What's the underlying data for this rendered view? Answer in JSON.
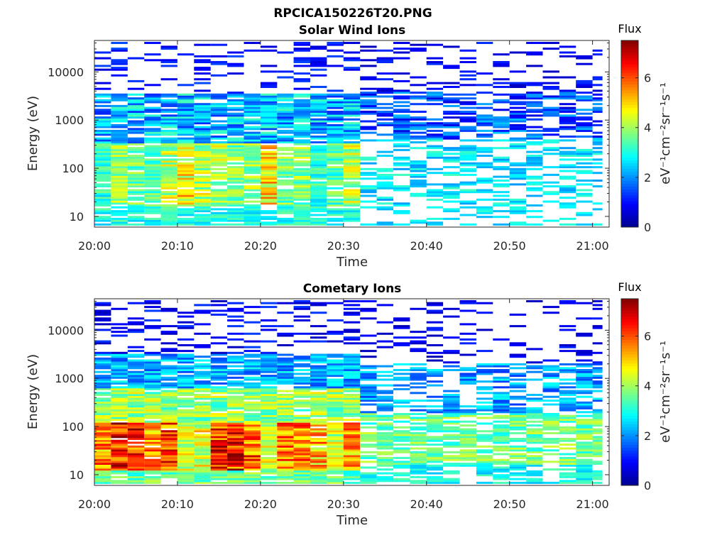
{
  "figure_title": "RPCICA150226T20.PNG",
  "colors": {
    "colormap": [
      "#00008f",
      "#0000ff",
      "#0080ff",
      "#00ffff",
      "#80ff80",
      "#ffff00",
      "#ff8000",
      "#ff0000",
      "#800000"
    ],
    "axis": "#262626",
    "background": "#ffffff"
  },
  "chart_data": [
    {
      "type": "heatmap",
      "title": "Solar Wind Ions",
      "xlabel": "Time",
      "ylabel": "Energy (eV)",
      "xlim": [
        "20:00",
        "21:02"
      ],
      "ylim": [
        6,
        45000
      ],
      "y_scale": "log",
      "x_ticks": [
        "20:00",
        "20:10",
        "20:20",
        "20:30",
        "20:40",
        "20:50",
        "21:00"
      ],
      "y_ticks": [
        "10",
        "100",
        "1000",
        "10000"
      ],
      "colorbar": {
        "title": "Flux",
        "label": "eV⁻¹cm⁻²sr⁻¹s⁻¹",
        "range": [
          0,
          7.5
        ],
        "ticks": [
          "0",
          "2",
          "4",
          "6"
        ]
      },
      "time_bins_minutes_start": 0,
      "time_bins_minutes_step": 2,
      "profile": "solar",
      "description_levels": "dense low-energy core (20-300 eV) flux ~4-5 until 20:30, sparse thereafter"
    },
    {
      "type": "heatmap",
      "title": "Cometary Ions",
      "xlabel": "Time",
      "ylabel": "Energy (eV)",
      "xlim": [
        "20:00",
        "21:02"
      ],
      "ylim": [
        6,
        45000
      ],
      "y_scale": "log",
      "x_ticks": [
        "20:00",
        "20:10",
        "20:20",
        "20:30",
        "20:40",
        "20:50",
        "21:00"
      ],
      "y_ticks": [
        "10",
        "100",
        "1000",
        "10000"
      ],
      "colorbar": {
        "title": "Flux",
        "label": "eV⁻¹cm⁻²sr⁻¹s⁻¹",
        "range": [
          0,
          7.5
        ],
        "ticks": [
          "0",
          "2",
          "4",
          "6"
        ]
      },
      "time_bins_minutes_start": 0,
      "time_bins_minutes_step": 2,
      "profile": "cometary",
      "description_levels": "peak flux ~6-7 at 30-100 eV between 20:05 and 20:28, weaker afterwards"
    }
  ]
}
